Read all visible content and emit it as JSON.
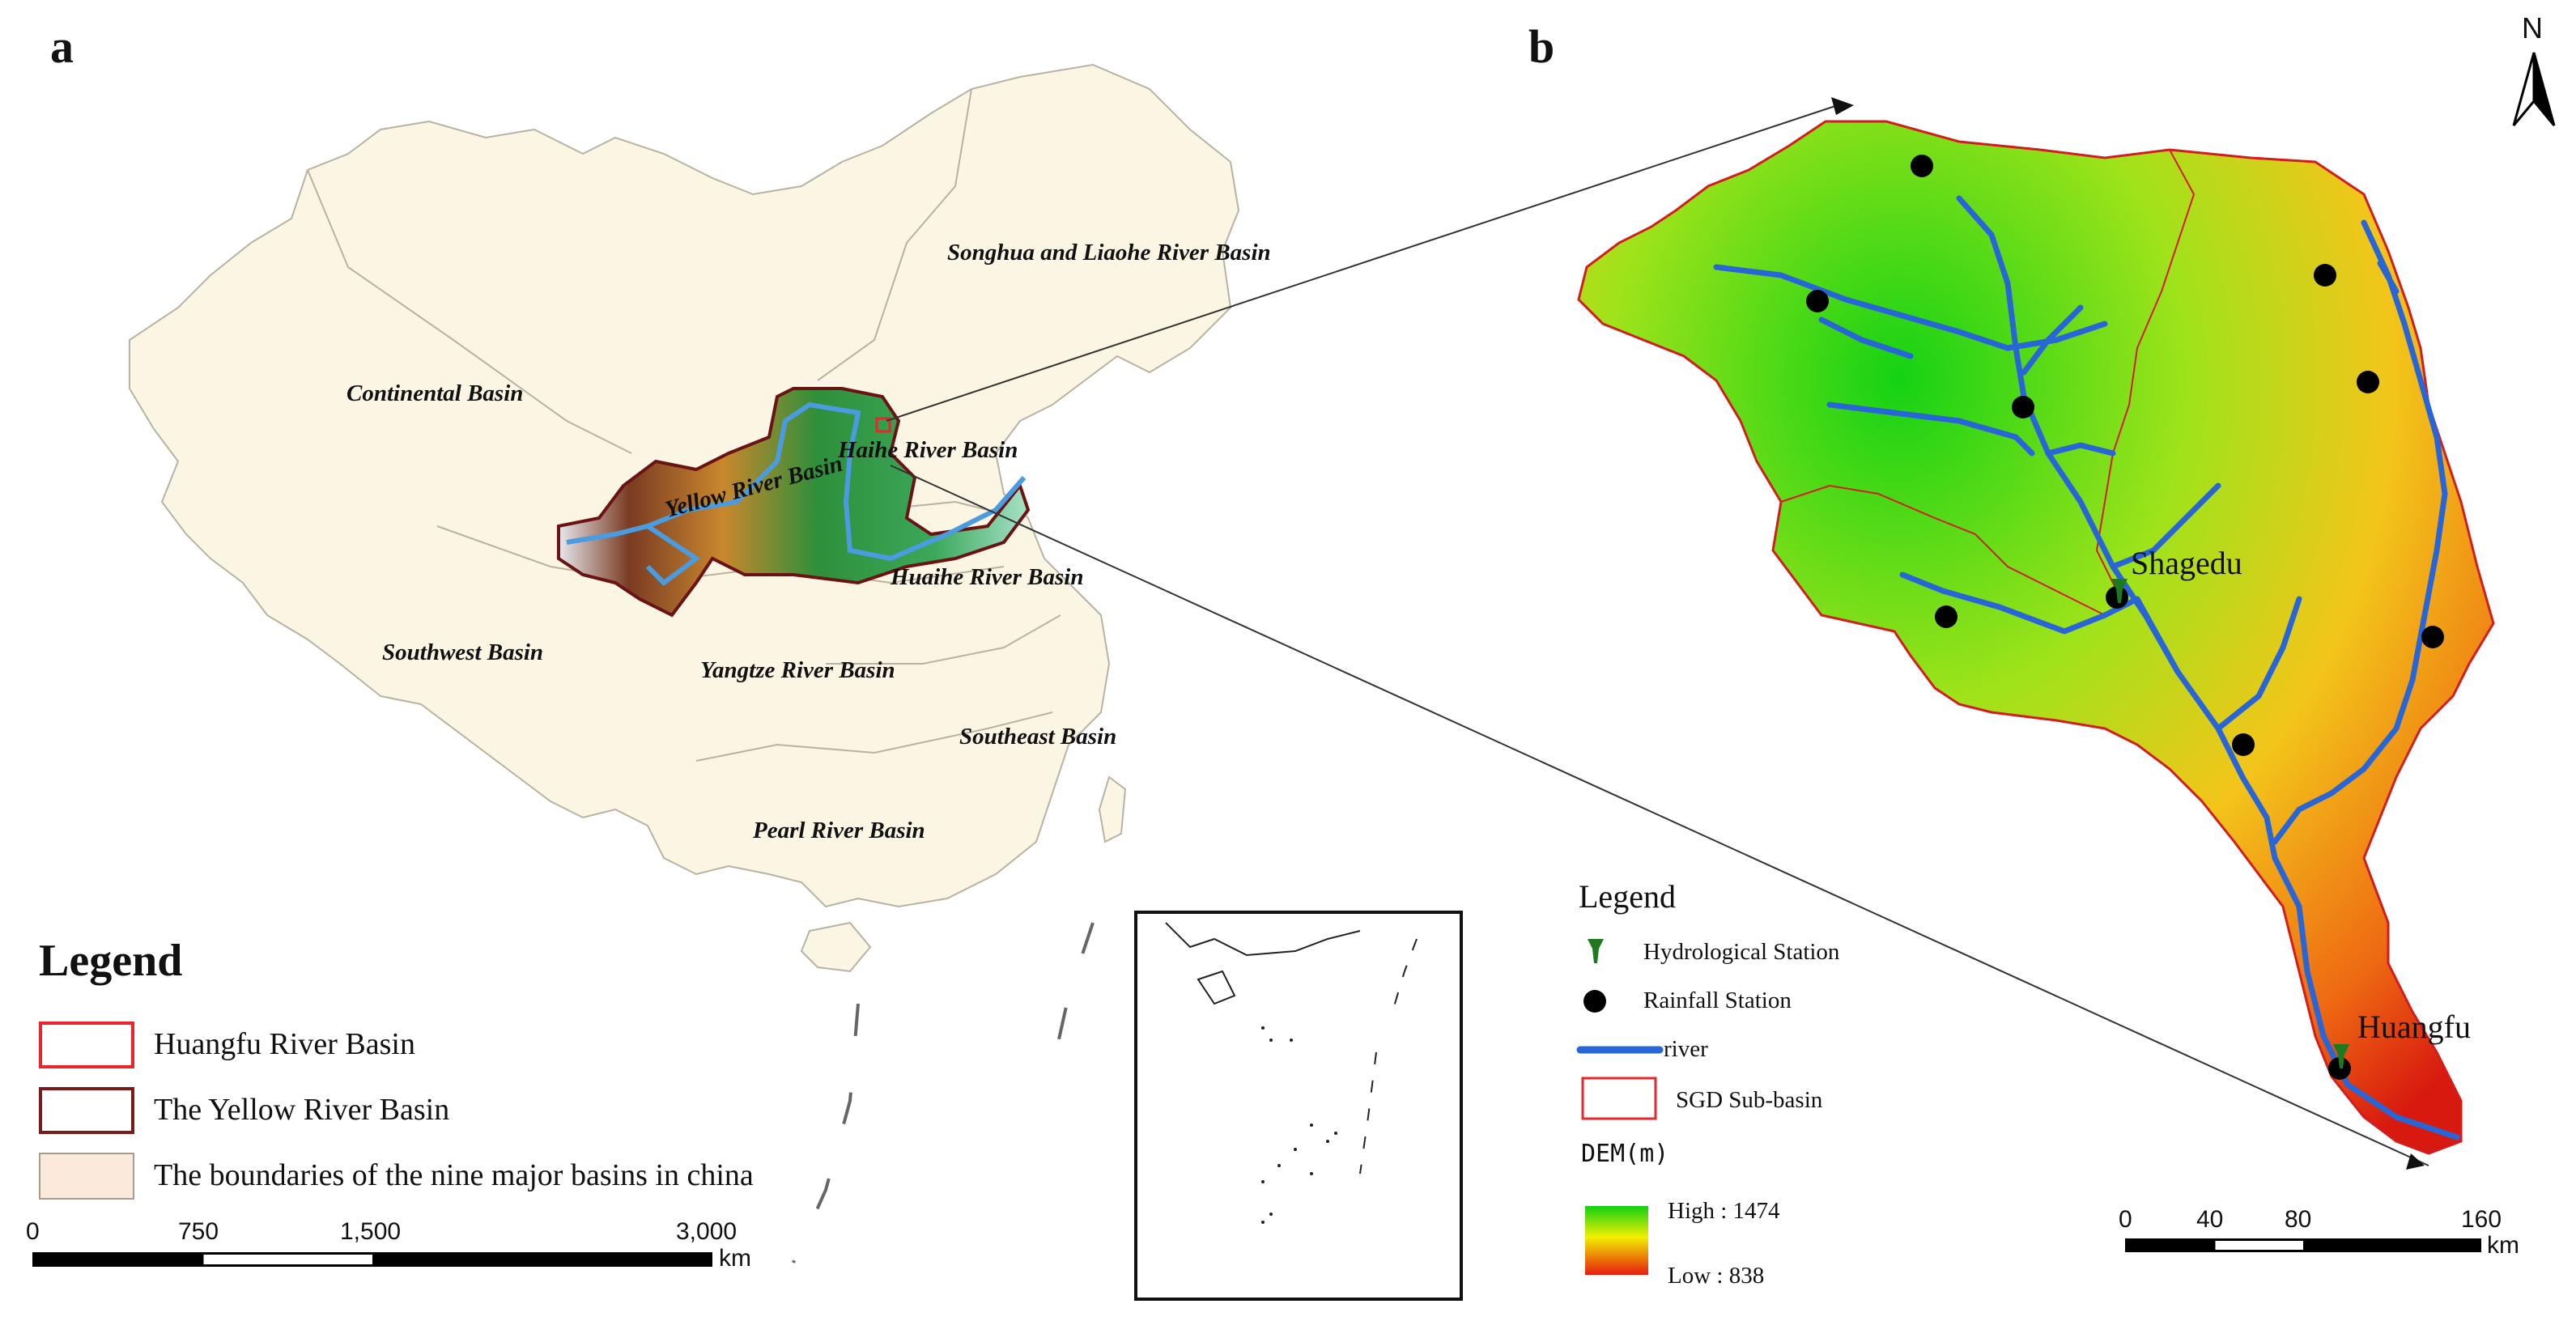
{
  "panel_a": {
    "letter": "a",
    "basin_labels": {
      "songhua": "Songhua and Liaohe River Basin",
      "continental": "Continental Basin",
      "haihe": "Haihe River Basin",
      "yellow": "Yellow River Basin",
      "huaihe": "Huaihe River Basin",
      "southwest": "Southwest Basin",
      "yangtze": "Yangtze River Basin",
      "southeast": "Southeast Basin",
      "pearl": "Pearl River Basin"
    },
    "legend": {
      "title": "Legend",
      "items": [
        {
          "label": "Huangfu River Basin",
          "color": "#e8262b"
        },
        {
          "label": "The Yellow River Basin",
          "color": "#7a1a1a"
        },
        {
          "label": "The boundaries of the nine major basins in china",
          "color": "#fbe9dc"
        }
      ]
    },
    "scale_bar": {
      "ticks": [
        "0",
        "750",
        "1,500",
        "3,000"
      ],
      "unit": "km"
    }
  },
  "panel_b": {
    "letter": "b",
    "north_label": "N",
    "stations": {
      "shagedu": "Shagedu",
      "huangfu": "Huangfu"
    },
    "legend": {
      "title": "Legend",
      "items": [
        {
          "label": "Hydrological Station",
          "icon": "hydrological-station-icon",
          "color": "#1f7a1f"
        },
        {
          "label": "Rainfall Station",
          "icon": "rainfall-station-icon",
          "color": "#000000"
        },
        {
          "label": "river",
          "icon": "river-line-icon",
          "color": "#2866d8"
        },
        {
          "label": "SGD Sub-basin",
          "icon": "subbasin-box-icon",
          "color": "#e8262b"
        }
      ],
      "dem": {
        "title": "DEM(m)",
        "high": "High : 1474",
        "low": "Low : 838"
      }
    },
    "scale_bar": {
      "ticks": [
        "0",
        "40",
        "80",
        "160"
      ],
      "unit": "km"
    }
  }
}
